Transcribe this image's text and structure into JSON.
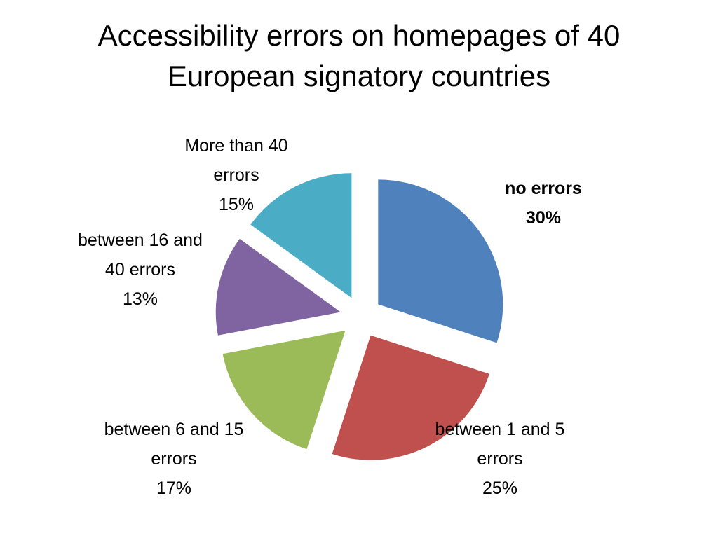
{
  "chart_data": {
    "type": "pie",
    "title": "Accessibility errors on homepages of 40 European signatory countries",
    "categories": [
      "no errors",
      "between 1 and 5 errors",
      "between 6 and 15 errors",
      "between 16 and 40 errors",
      "More than 40 errors"
    ],
    "values": [
      30,
      25,
      17,
      13,
      15
    ],
    "value_labels": [
      "30%",
      "25%",
      "17%",
      "13%",
      "15%"
    ],
    "colors": [
      "#4f81bd",
      "#c0504d",
      "#9bbb59",
      "#8064a2",
      "#4bacc6"
    ]
  }
}
